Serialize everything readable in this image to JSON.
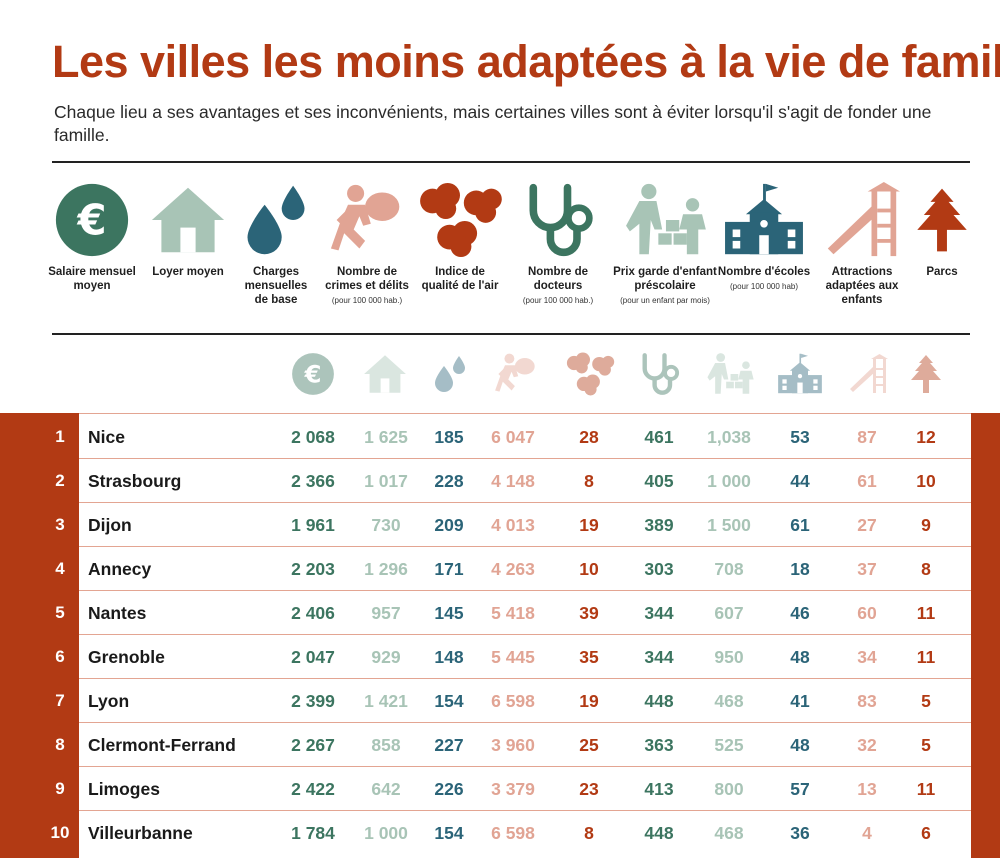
{
  "title": "Les villes les moins adaptées à la vie de famille",
  "subtitle": "Chaque lieu a ses avantages et ses inconvénients, mais certaines villes sont à éviter lorsqu'il s'agit de fonder une famille.",
  "colors": {
    "rust": "#b23a14",
    "green": "#3c7560",
    "sage": "#a8c4b6",
    "teal": "#2b6478",
    "pink": "#e1a494"
  },
  "legend": [
    {
      "icon": "euro-icon",
      "label": "Salaire mensuel\nmoyen",
      "note": ""
    },
    {
      "icon": "house-icon",
      "label": "Loyer moyen",
      "note": ""
    },
    {
      "icon": "water-drops-icon",
      "label": "Charges\nmensuelles\nde base",
      "note": ""
    },
    {
      "icon": "thief-icon",
      "label": "Nombre de\ncrimes et délits",
      "note": "(pour 100 000 hab.)"
    },
    {
      "icon": "smoke-cloud-icon",
      "label": "Indice de\nqualité de l'air",
      "note": ""
    },
    {
      "icon": "stethoscope-icon",
      "label": "Nombre de\ndocteurs",
      "note": "(pour 100 000 hab.)"
    },
    {
      "icon": "childcare-icon",
      "label": "Prix garde d'enfant\npréscolaire",
      "note": "(pour un enfant par mois)"
    },
    {
      "icon": "school-icon",
      "label": "Nombre d'écoles",
      "note": "(pour 100 000 hab)"
    },
    {
      "icon": "slide-icon",
      "label": "Attractions\nadaptées aux\nenfants",
      "note": ""
    },
    {
      "icon": "tree-icon",
      "label": "Parcs",
      "note": ""
    }
  ],
  "chart_data": {
    "type": "table",
    "title": "Les villes les moins adaptées à la vie de famille",
    "columns": [
      "Salaire mensuel moyen",
      "Loyer moyen",
      "Charges mensuelles de base",
      "Nombre de crimes et délits",
      "Indice de qualité de l'air",
      "Nombre de docteurs",
      "Prix garde d'enfant préscolaire",
      "Nombre d'écoles",
      "Attractions adaptées aux enfants",
      "Parcs"
    ],
    "rows": [
      {
        "rank": "1",
        "city": "Nice",
        "values": [
          "2 068",
          "1 625",
          "185",
          "6 047",
          "28",
          "461",
          "1,038",
          "53",
          "87",
          "12"
        ]
      },
      {
        "rank": "2",
        "city": "Strasbourg",
        "values": [
          "2 366",
          "1 017",
          "228",
          "4 148",
          "8",
          "405",
          "1 000",
          "44",
          "61",
          "10"
        ]
      },
      {
        "rank": "3",
        "city": "Dijon",
        "values": [
          "1 961",
          "730",
          "209",
          "4 013",
          "19",
          "389",
          "1 500",
          "61",
          "27",
          "9"
        ]
      },
      {
        "rank": "4",
        "city": "Annecy",
        "values": [
          "2 203",
          "1 296",
          "171",
          "4 263",
          "10",
          "303",
          "708",
          "18",
          "37",
          "8"
        ]
      },
      {
        "rank": "5",
        "city": "Nantes",
        "values": [
          "2 406",
          "957",
          "145",
          "5 418",
          "39",
          "344",
          "607",
          "46",
          "60",
          "11"
        ]
      },
      {
        "rank": "6",
        "city": "Grenoble",
        "values": [
          "2 047",
          "929",
          "148",
          "5 445",
          "35",
          "344",
          "950",
          "48",
          "34",
          "11"
        ]
      },
      {
        "rank": "7",
        "city": "Lyon",
        "values": [
          "2 399",
          "1 421",
          "154",
          "6 598",
          "19",
          "448",
          "468",
          "41",
          "83",
          "5"
        ]
      },
      {
        "rank": "8",
        "city": "Clermont-Ferrand",
        "values": [
          "2 267",
          "858",
          "227",
          "3 960",
          "25",
          "363",
          "525",
          "48",
          "32",
          "5"
        ]
      },
      {
        "rank": "9",
        "city": "Limoges",
        "values": [
          "2 422",
          "642",
          "226",
          "3 379",
          "23",
          "413",
          "800",
          "57",
          "13",
          "11"
        ]
      },
      {
        "rank": "10",
        "city": "Villeurbanne",
        "values": [
          "1 784",
          "1 000",
          "154",
          "6 598",
          "8",
          "448",
          "468",
          "36",
          "4",
          "6"
        ]
      }
    ]
  }
}
